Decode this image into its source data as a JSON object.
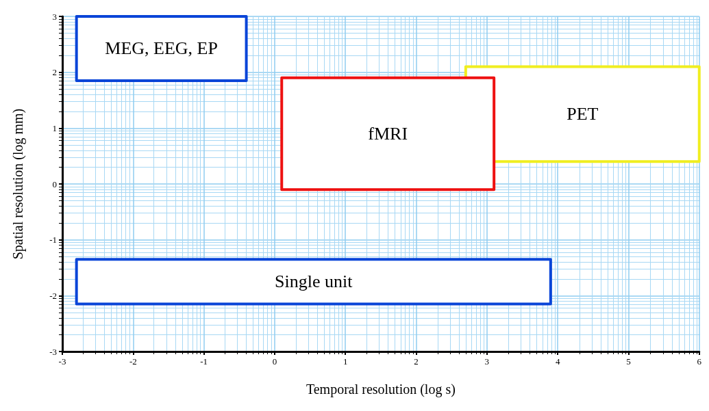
{
  "chart_data": {
    "type": "area",
    "xlabel": "Temporal resolution (log s)",
    "ylabel": "Spatial resolution (log mm)",
    "legend": false,
    "xlim": [
      -3,
      6
    ],
    "xticks": [
      -3,
      {
        "value": -2.699,
        "label": null
      },
      {
        "value": -2.523,
        "label": null
      },
      {
        "value": -2.398,
        "label": null
      },
      {
        "value": -2.301,
        "label": null
      },
      {
        "value": -2.222,
        "label": null
      },
      {
        "value": -2.155,
        "label": null
      },
      {
        "value": -2.097,
        "label": null
      },
      {
        "value": -2.046,
        "label": null
      },
      -2,
      {
        "value": -1.699,
        "label": null
      },
      {
        "value": -1.523,
        "label": null
      },
      {
        "value": -1.398,
        "label": null
      },
      {
        "value": -1.301,
        "label": null
      },
      {
        "value": -1.222,
        "label": null
      },
      {
        "value": -1.155,
        "label": null
      },
      {
        "value": -1.097,
        "label": null
      },
      {
        "value": -1.046,
        "label": null
      },
      -1,
      {
        "value": -0.699,
        "label": null
      },
      {
        "value": -0.523,
        "label": null
      },
      {
        "value": -0.398,
        "label": null
      },
      {
        "value": -0.301,
        "label": null
      },
      {
        "value": -0.222,
        "label": null
      },
      {
        "value": -0.155,
        "label": null
      },
      {
        "value": -0.097,
        "label": null
      },
      {
        "value": -0.046,
        "label": null
      },
      0,
      {
        "value": 0.301,
        "label": null
      },
      {
        "value": 0.477,
        "label": null
      },
      {
        "value": 0.602,
        "label": null
      },
      {
        "value": 0.699,
        "label": null
      },
      {
        "value": 0.778,
        "label": null
      },
      {
        "value": 0.845,
        "label": null
      },
      {
        "value": 0.903,
        "label": null
      },
      {
        "value": 0.954,
        "label": null
      },
      1,
      {
        "value": 1.301,
        "label": null
      },
      {
        "value": 1.477,
        "label": null
      },
      {
        "value": 1.602,
        "label": null
      },
      {
        "value": 1.699,
        "label": null
      },
      {
        "value": 1.778,
        "label": null
      },
      {
        "value": 1.845,
        "label": null
      },
      {
        "value": 1.903,
        "label": null
      },
      {
        "value": 1.954,
        "label": null
      },
      2,
      {
        "value": 2.301,
        "label": null
      },
      {
        "value": 2.477,
        "label": null
      },
      {
        "value": 2.602,
        "label": null
      },
      {
        "value": 2.699,
        "label": null
      },
      {
        "value": 2.778,
        "label": null
      },
      {
        "value": 2.845,
        "label": null
      },
      {
        "value": 2.903,
        "label": null
      },
      {
        "value": 2.954,
        "label": null
      },
      3,
      {
        "value": 3.301,
        "label": null
      },
      {
        "value": 3.477,
        "label": null
      },
      {
        "value": 3.602,
        "label": null
      },
      {
        "value": 3.699,
        "label": null
      },
      {
        "value": 3.778,
        "label": null
      },
      {
        "value": 3.845,
        "label": null
      },
      {
        "value": 3.903,
        "label": null
      },
      {
        "value": 3.954,
        "label": null
      },
      4,
      {
        "value": 4.301,
        "label": null
      },
      {
        "value": 4.477,
        "label": null
      },
      {
        "value": 4.602,
        "label": null
      },
      {
        "value": 4.699,
        "label": null
      },
      {
        "value": 4.778,
        "label": null
      },
      {
        "value": 4.845,
        "label": null
      },
      {
        "value": 4.903,
        "label": null
      },
      {
        "value": 4.954,
        "label": null
      },
      5,
      {
        "value": 5.301,
        "label": null
      },
      {
        "value": 5.477,
        "label": null
      },
      {
        "value": 5.602,
        "label": null
      },
      {
        "value": 5.699,
        "label": null
      },
      {
        "value": 5.778,
        "label": null
      },
      {
        "value": 5.845,
        "label": null
      },
      {
        "value": 5.903,
        "label": null
      },
      {
        "value": 5.954,
        "label": null
      },
      6
    ],
    "ylim": [
      -3,
      3
    ],
    "yticks": [
      -3,
      {
        "value": -2.699,
        "label": null
      },
      {
        "value": -2.523,
        "label": null
      },
      {
        "value": -2.398,
        "label": null
      },
      {
        "value": -2.301,
        "label": null
      },
      {
        "value": -2.222,
        "label": null
      },
      {
        "value": -2.155,
        "label": null
      },
      {
        "value": -2.097,
        "label": null
      },
      {
        "value": -2.046,
        "label": null
      },
      -2,
      {
        "value": -1.699,
        "label": null
      },
      {
        "value": -1.523,
        "label": null
      },
      {
        "value": -1.398,
        "label": null
      },
      {
        "value": -1.301,
        "label": null
      },
      {
        "value": -1.222,
        "label": null
      },
      {
        "value": -1.155,
        "label": null
      },
      {
        "value": -1.097,
        "label": null
      },
      {
        "value": -1.046,
        "label": null
      },
      -1,
      {
        "value": -0.699,
        "label": null
      },
      {
        "value": -0.523,
        "label": null
      },
      {
        "value": -0.398,
        "label": null
      },
      {
        "value": -0.301,
        "label": null
      },
      {
        "value": -0.222,
        "label": null
      },
      {
        "value": -0.155,
        "label": null
      },
      {
        "value": -0.097,
        "label": null
      },
      {
        "value": -0.046,
        "label": null
      },
      0,
      {
        "value": 0.301,
        "label": null
      },
      {
        "value": 0.477,
        "label": null
      },
      {
        "value": 0.602,
        "label": null
      },
      {
        "value": 0.699,
        "label": null
      },
      {
        "value": 0.778,
        "label": null
      },
      {
        "value": 0.845,
        "label": null
      },
      {
        "value": 0.903,
        "label": null
      },
      {
        "value": 0.954,
        "label": null
      },
      1,
      {
        "value": 1.301,
        "label": null
      },
      {
        "value": 1.477,
        "label": null
      },
      {
        "value": 1.602,
        "label": null
      },
      {
        "value": 1.699,
        "label": null
      },
      {
        "value": 1.778,
        "label": null
      },
      {
        "value": 1.845,
        "label": null
      },
      {
        "value": 1.903,
        "label": null
      },
      {
        "value": 1.954,
        "label": null
      },
      2,
      {
        "value": 2.301,
        "label": null
      },
      {
        "value": 2.477,
        "label": null
      },
      {
        "value": 2.602,
        "label": null
      },
      {
        "value": 2.699,
        "label": null
      },
      {
        "value": 2.778,
        "label": null
      },
      {
        "value": 2.845,
        "label": null
      },
      {
        "value": 2.903,
        "label": null
      },
      {
        "value": 2.954,
        "label": null
      },
      3
    ],
    "grid": true,
    "marker": "none",
    "series": [
      {
        "name": "MEG, EEG, EP",
        "color": "#0a45d8",
        "x": [
          -2.8,
          -2.8,
          -0.4,
          -0.4,
          -2.8
        ],
        "values": [
          1.85,
          3,
          3,
          1.85,
          1.85
        ]
      },
      {
        "name": "PET",
        "color": "#f0ee20",
        "x": [
          3.1,
          6,
          6,
          2.7,
          2.7
        ],
        "values": [
          0.4,
          0.4,
          2.1,
          2.1,
          1.9
        ]
      },
      {
        "name": "fMRI",
        "color": "#ee1111",
        "x": [
          0.1,
          0.1,
          3.1,
          3.1,
          0.1
        ],
        "values": [
          -0.1,
          1.9,
          1.9,
          -0.1,
          -0.1
        ]
      },
      {
        "name": "Single unit",
        "color": "#0a45d8",
        "x": [
          -2.8,
          -2.8,
          3.9,
          3.9,
          -2.8
        ],
        "values": [
          -2.15,
          -1.35,
          -1.35,
          -2.15,
          -2.15
        ]
      }
    ]
  }
}
